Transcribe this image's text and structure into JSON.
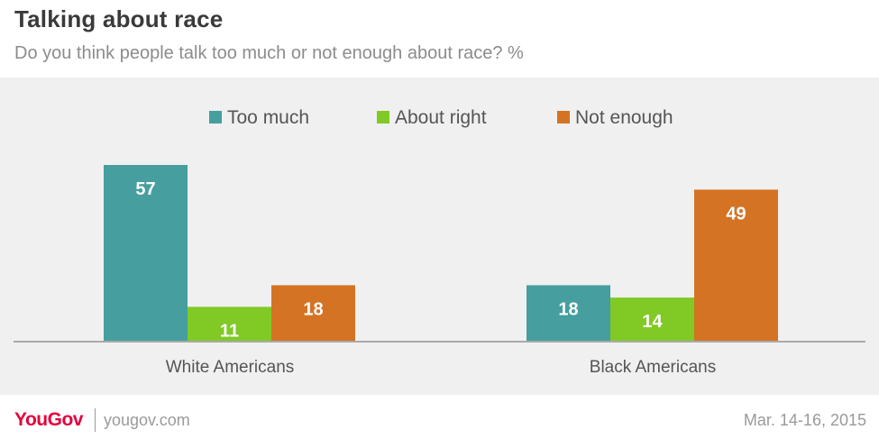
{
  "title": "Talking about race",
  "subtitle": "Do you think people talk too much or not enough about race? %",
  "footer": {
    "logo": "YouGov",
    "site": "yougov.com",
    "date": "Mar. 14-16, 2015"
  },
  "chart_data": {
    "type": "bar",
    "categories": [
      "White Americans",
      "Black Americans"
    ],
    "series": [
      {
        "name": "Too much",
        "color": "#469e9f",
        "values": [
          57,
          18
        ]
      },
      {
        "name": "About right",
        "color": "#81c925",
        "values": [
          11,
          14
        ]
      },
      {
        "name": "Not enough",
        "color": "#d47324",
        "values": [
          18,
          49
        ]
      }
    ],
    "ylim": [
      0,
      60
    ],
    "legend_position": "top-center",
    "grid": false
  }
}
